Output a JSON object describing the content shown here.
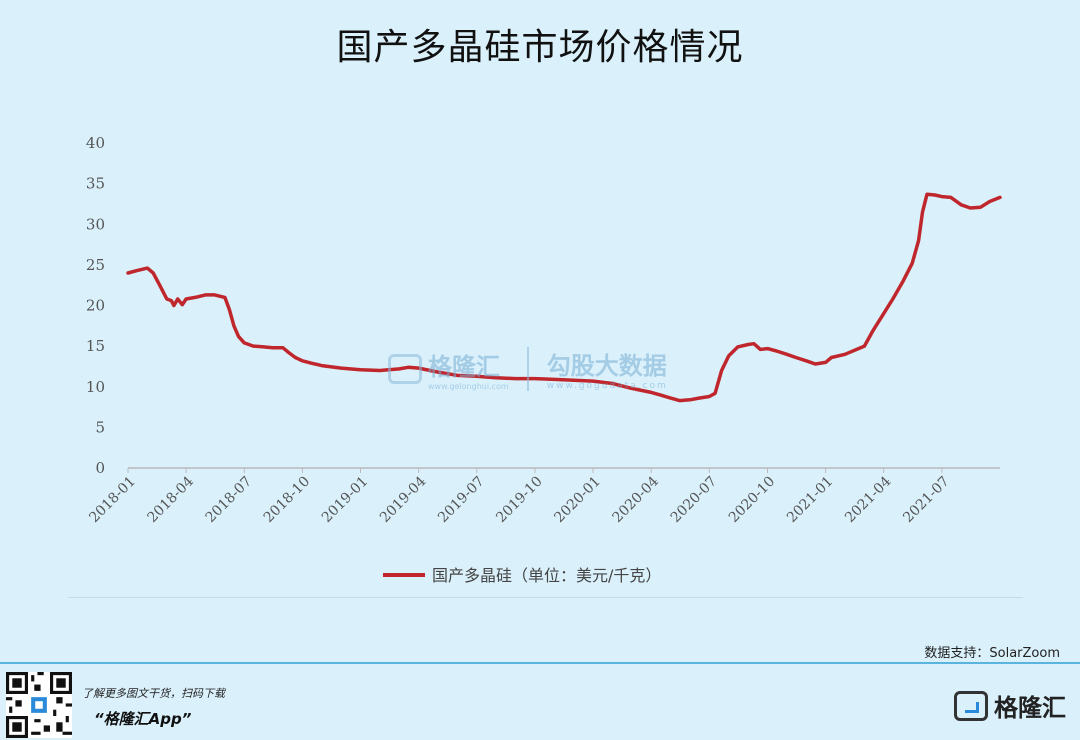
{
  "header": {
    "title": "国产多晶硅市场价格情况"
  },
  "watermark": {
    "brand1": "格隆汇",
    "brand1_url": "www.gelonghui.com",
    "brand2": "勾股大数据",
    "brand2_url": "www.gogudata.com"
  },
  "source": "数据支持：SolarZoom",
  "footer": {
    "hint": "了解更多图文干货，扫码下载",
    "app": "“格隆汇App”",
    "brand": "格隆汇"
  },
  "colors": {
    "line": "#c0272d",
    "background": "#daf1fc",
    "axis": "#bbbbbb"
  },
  "chart_data": {
    "type": "line",
    "title": "国产多晶硅市场价格情况",
    "xlabel": "",
    "ylabel": "",
    "ylim": [
      0,
      40
    ],
    "yticks": [
      0,
      5,
      10,
      15,
      20,
      25,
      30,
      35,
      40
    ],
    "xticks": [
      "2018-01",
      "2018-04",
      "2018-07",
      "2018-10",
      "2019-01",
      "2019-04",
      "2019-07",
      "2019-10",
      "2020-01",
      "2020-04",
      "2020-07",
      "2020-10",
      "2021-01",
      "2021-04",
      "2021-07"
    ],
    "x_range_months": [
      "2018-01",
      "2021-10"
    ],
    "grid": false,
    "legend_position": "bottom",
    "series": [
      {
        "name": "国产多晶硅（单位：美元/千克）",
        "color": "#c0272d",
        "points": [
          [
            "2018-01",
            24.0
          ],
          [
            "2018-01-15",
            24.3
          ],
          [
            "2018-02",
            24.6
          ],
          [
            "2018-02-10",
            24.0
          ],
          [
            "2018-02-20",
            22.5
          ],
          [
            "2018-03-01",
            20.8
          ],
          [
            "2018-03-08",
            20.6
          ],
          [
            "2018-03-12",
            20.0
          ],
          [
            "2018-03-18",
            20.8
          ],
          [
            "2018-03-25",
            20.1
          ],
          [
            "2018-04",
            20.8
          ],
          [
            "2018-04-15",
            21.0
          ],
          [
            "2018-05",
            21.3
          ],
          [
            "2018-05-15",
            21.3
          ],
          [
            "2018-06",
            21.0
          ],
          [
            "2018-06-08",
            19.5
          ],
          [
            "2018-06-15",
            17.5
          ],
          [
            "2018-06-22",
            16.2
          ],
          [
            "2018-07",
            15.4
          ],
          [
            "2018-07-15",
            15.0
          ],
          [
            "2018-08",
            14.9
          ],
          [
            "2018-08-15",
            14.8
          ],
          [
            "2018-09",
            14.8
          ],
          [
            "2018-09-10",
            14.2
          ],
          [
            "2018-09-20",
            13.6
          ],
          [
            "2018-10",
            13.2
          ],
          [
            "2018-10-15",
            12.9
          ],
          [
            "2018-11",
            12.6
          ],
          [
            "2018-12",
            12.3
          ],
          [
            "2019-01",
            12.1
          ],
          [
            "2019-02",
            12.0
          ],
          [
            "2019-03",
            12.2
          ],
          [
            "2019-03-15",
            12.4
          ],
          [
            "2019-04",
            12.3
          ],
          [
            "2019-05",
            11.8
          ],
          [
            "2019-06",
            11.4
          ],
          [
            "2019-07",
            11.3
          ],
          [
            "2019-07-15",
            11.2
          ],
          [
            "2019-08",
            11.1
          ],
          [
            "2019-09",
            11.0
          ],
          [
            "2019-10",
            11.0
          ],
          [
            "2019-11",
            10.9
          ],
          [
            "2019-12",
            10.8
          ],
          [
            "2020-01",
            10.7
          ],
          [
            "2020-02",
            10.4
          ],
          [
            "2020-03",
            9.8
          ],
          [
            "2020-04",
            9.3
          ],
          [
            "2020-04-15",
            9.0
          ],
          [
            "2020-05",
            8.6
          ],
          [
            "2020-05-15",
            8.3
          ],
          [
            "2020-06",
            8.4
          ],
          [
            "2020-06-15",
            8.6
          ],
          [
            "2020-07",
            8.8
          ],
          [
            "2020-07-10",
            9.2
          ],
          [
            "2020-07-20",
            12.0
          ],
          [
            "2020-08",
            13.8
          ],
          [
            "2020-08-15",
            14.9
          ],
          [
            "2020-09",
            15.2
          ],
          [
            "2020-09-10",
            15.3
          ],
          [
            "2020-09-20",
            14.6
          ],
          [
            "2020-10",
            14.7
          ],
          [
            "2020-10-15",
            14.4
          ],
          [
            "2020-11",
            14.0
          ],
          [
            "2020-11-15",
            13.6
          ],
          [
            "2020-12",
            13.2
          ],
          [
            "2020-12-15",
            12.8
          ],
          [
            "2021-01",
            13.0
          ],
          [
            "2021-01-10",
            13.6
          ],
          [
            "2021-02",
            14.0
          ],
          [
            "2021-03",
            15.0
          ],
          [
            "2021-03-15",
            17.0
          ],
          [
            "2021-04",
            19.0
          ],
          [
            "2021-04-15",
            20.8
          ],
          [
            "2021-05",
            23.0
          ],
          [
            "2021-05-15",
            25.2
          ],
          [
            "2021-05-25",
            28.0
          ],
          [
            "2021-06",
            31.5
          ],
          [
            "2021-06-08",
            33.7
          ],
          [
            "2021-06-20",
            33.6
          ],
          [
            "2021-07",
            33.4
          ],
          [
            "2021-07-15",
            33.3
          ],
          [
            "2021-08",
            32.4
          ],
          [
            "2021-08-15",
            32.0
          ],
          [
            "2021-09",
            32.1
          ],
          [
            "2021-09-15",
            32.8
          ],
          [
            "2021-10",
            33.3
          ]
        ]
      }
    ]
  }
}
